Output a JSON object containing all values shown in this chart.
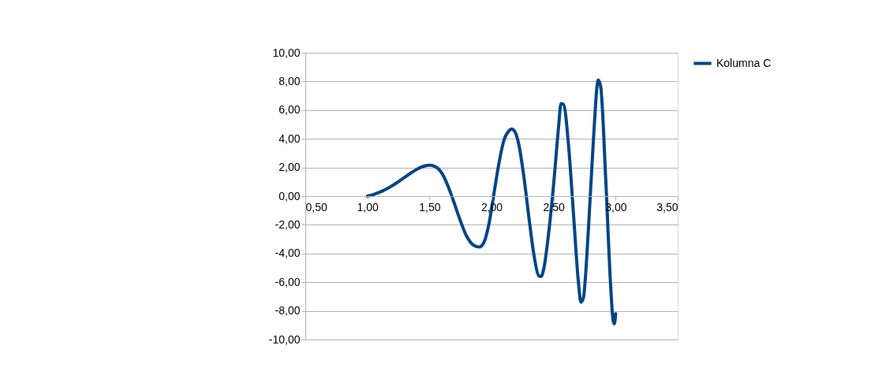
{
  "chart_data": {
    "type": "line",
    "legend": "right",
    "grid": "y",
    "marker": "none",
    "line_style": "solid",
    "xlim": [
      0.5,
      3.5
    ],
    "ylim": [
      -10,
      10
    ],
    "xticks": [
      {
        "value": 0.5,
        "label": "0,50"
      },
      {
        "value": 1.0,
        "label": "1,00"
      },
      {
        "value": 1.5,
        "label": "1,50"
      },
      {
        "value": 2.0,
        "label": "2,00"
      },
      {
        "value": 2.5,
        "label": "2,50"
      },
      {
        "value": 3.0,
        "label": "3,00"
      },
      {
        "value": 3.5,
        "label": "3,50"
      }
    ],
    "yticks": [
      {
        "value": -10,
        "label": "-10,00"
      },
      {
        "value": -8,
        "label": "-8,00"
      },
      {
        "value": -6,
        "label": "-6,00"
      },
      {
        "value": -4,
        "label": "-4,00"
      },
      {
        "value": -2,
        "label": "-2,00"
      },
      {
        "value": 0,
        "label": "0,00"
      },
      {
        "value": 2,
        "label": "2,00"
      },
      {
        "value": 4,
        "label": "4,00"
      },
      {
        "value": 6,
        "label": "6,00"
      },
      {
        "value": 8,
        "label": "8,00"
      },
      {
        "value": 10,
        "label": "10,00"
      }
    ],
    "x": [
      1.0,
      1.02,
      1.04,
      1.06,
      1.08,
      1.1,
      1.12,
      1.14,
      1.16,
      1.18,
      1.2,
      1.22,
      1.24,
      1.26,
      1.28,
      1.34,
      1.4,
      1.46,
      1.5,
      1.54,
      1.6,
      1.64,
      1.68,
      1.74,
      1.8,
      1.86,
      1.9,
      1.94,
      1.98,
      2.02,
      2.06,
      2.1,
      2.14,
      2.16,
      2.18,
      2.22,
      2.26,
      2.3,
      2.34,
      2.38,
      2.4,
      2.42,
      2.46,
      2.5,
      2.54,
      2.56,
      2.58,
      2.62,
      2.66,
      2.7,
      2.72,
      2.74,
      2.78,
      2.82,
      2.86,
      2.88,
      2.92,
      2.96,
      2.98,
      2.99,
      3.0
    ],
    "series": [
      {
        "name": "Kolumna C",
        "color": "#004586",
        "values": [
          0.0,
          0.04,
          0.09,
          0.15,
          0.21,
          0.28,
          0.35,
          0.44,
          0.53,
          0.62,
          0.73,
          0.84,
          0.95,
          1.07,
          1.19,
          1.55,
          1.88,
          2.1,
          2.15,
          2.08,
          1.6,
          0.9,
          0.0,
          -1.5,
          -2.8,
          -3.45,
          -3.55,
          -3.2,
          -1.9,
          0.2,
          2.3,
          3.9,
          4.55,
          4.68,
          4.6,
          3.6,
          1.4,
          -1.4,
          -4.0,
          -5.55,
          -5.6,
          -5.1,
          -2.6,
          0.8,
          4.8,
          6.45,
          6.4,
          3.6,
          -1.2,
          -6.0,
          -7.4,
          -7.1,
          -2.4,
          3.8,
          8.1,
          7.6,
          1.2,
          -6.3,
          -8.7,
          -8.9,
          -8.2
        ]
      }
    ]
  }
}
